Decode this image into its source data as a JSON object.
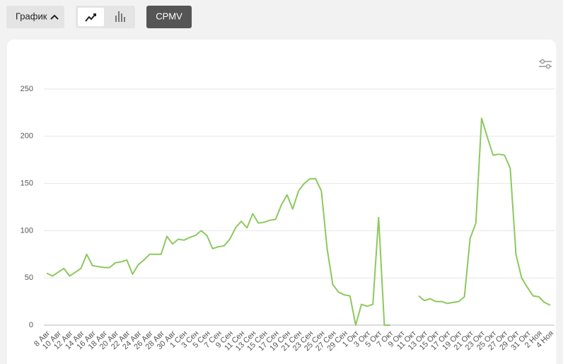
{
  "toolbar": {
    "graph_button": "График",
    "metric_button": "CPMV"
  },
  "chart_data": {
    "type": "line",
    "color": "#8cc95d",
    "grid": true,
    "ylim": [
      0,
      250
    ],
    "yticks": [
      0,
      50,
      100,
      150,
      200,
      250
    ],
    "categories": [
      "8 Авг",
      null,
      "10 Авг",
      null,
      "12 Авг",
      null,
      "14 Авг",
      null,
      "16 Авг",
      null,
      "18 Авг",
      null,
      "20 Авг",
      null,
      "22 Авг",
      null,
      "24 Авг",
      null,
      "26 Авг",
      null,
      "28 Авг",
      null,
      "30 Авг",
      null,
      "1 Сен",
      null,
      "3 Сен",
      null,
      "5 Сен",
      null,
      "7 Сен",
      null,
      "9 Сен",
      null,
      "11 Сен",
      null,
      "13 Сен",
      null,
      "15 Сен",
      null,
      "17 Сен",
      null,
      "19 Сен",
      null,
      "21 Сен",
      null,
      "23 Сен",
      null,
      "25 Сен",
      null,
      "27 Сен",
      null,
      "29 Сен",
      null,
      "1 Окт",
      null,
      "3 Окт",
      null,
      "5 Окт",
      null,
      "7 Окт",
      null,
      "9 Окт",
      null,
      "11 Окт",
      null,
      "13 Окт",
      null,
      "15 Окт",
      null,
      "17 Окт",
      null,
      "19 Окт",
      null,
      "21 Окт",
      null,
      "23 Окт",
      null,
      "25 Окт",
      null,
      "27 Окт",
      null,
      "29 Окт",
      null,
      "31 Окт",
      null,
      "2 Ноя",
      null,
      "4 Ноя"
    ],
    "values": [
      55,
      52,
      56,
      60,
      52,
      56,
      60,
      75,
      63,
      62,
      61,
      61,
      66,
      67,
      69,
      54,
      64,
      69,
      75,
      75,
      75,
      94,
      86,
      91,
      90,
      93,
      95,
      100,
      95,
      81,
      83,
      84,
      91,
      103,
      110,
      103,
      118,
      108,
      109,
      111,
      112,
      127,
      138,
      123,
      142,
      150,
      155,
      155,
      142,
      81,
      43,
      35,
      32,
      31,
      0,
      22,
      20,
      22,
      114,
      0,
      0,
      null,
      null,
      null,
      null,
      31,
      26,
      28,
      25,
      25,
      23,
      24,
      25,
      30,
      92,
      108,
      219,
      199,
      180,
      181,
      180,
      166,
      75,
      50,
      40,
      31,
      30,
      24,
      21
    ]
  }
}
